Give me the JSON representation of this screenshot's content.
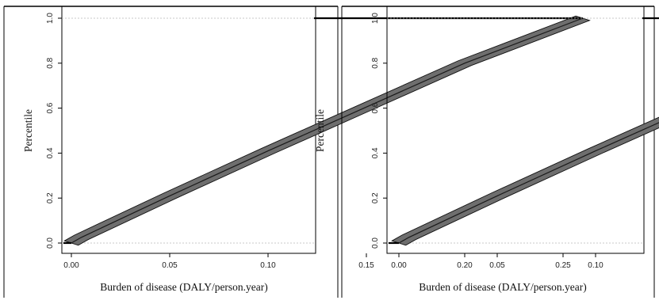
{
  "chart_data": [
    {
      "type": "line",
      "title": "",
      "xlabel": "Burden of disease (DALY/person.year)",
      "ylabel": "Percentile",
      "xlim": [
        -0.01,
        0.27
      ],
      "ylim": [
        -0.02,
        1.02
      ],
      "xticks": [
        "0.00",
        "0.05",
        "0.10",
        "0.15",
        "0.20",
        "0.25"
      ],
      "yticks": [
        "0.0",
        "0.2",
        "0.4",
        "0.6",
        "0.8",
        "1.0"
      ],
      "reference_lines_y": [
        0.0,
        1.0
      ],
      "grid": false,
      "legend": "none",
      "series": [
        {
          "x": [
            -0.01,
            0.0,
            0.005,
            0.05,
            0.1,
            0.15,
            0.2,
            0.26,
            0.27
          ],
          "y": [
            0.0,
            0.0,
            0.025,
            0.21,
            0.41,
            0.605,
            0.8,
            1.0,
            1.0
          ],
          "band_width": 0.02
        }
      ]
    },
    {
      "type": "line",
      "title": "",
      "xlabel": "Burden of disease (DALY/person.year)",
      "ylabel": "Percentile",
      "xlim": [
        -0.01,
        0.27
      ],
      "ylim": [
        -0.02,
        1.02
      ],
      "xticks": [
        "0.00",
        "0.05",
        "0.10",
        "0.15",
        "0.20",
        "0.25"
      ],
      "yticks": [
        "0.0",
        "0.2",
        "0.4",
        "0.6",
        "0.8",
        "1.0"
      ],
      "reference_lines_y": [
        0.0,
        1.0
      ],
      "grid": false,
      "legend": "none",
      "series": [
        {
          "x": [
            -0.01,
            0.0,
            0.005,
            0.05,
            0.1,
            0.15,
            0.2,
            0.26,
            0.27
          ],
          "y": [
            0.0,
            0.0,
            0.025,
            0.21,
            0.41,
            0.605,
            0.8,
            1.0,
            1.0
          ],
          "band_width": 0.02
        }
      ]
    }
  ]
}
